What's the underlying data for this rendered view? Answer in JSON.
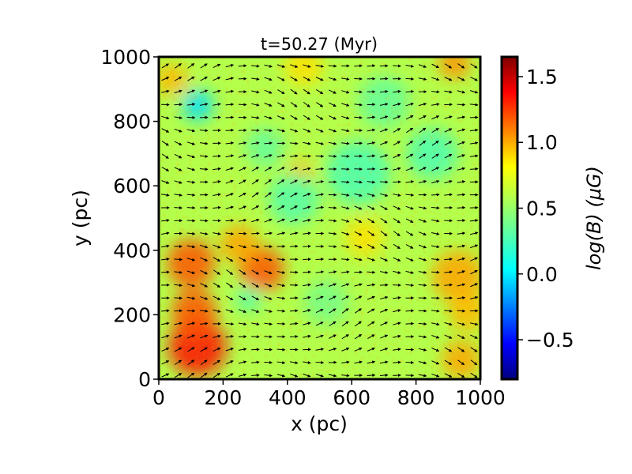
{
  "chart_data": {
    "type": "heatmap",
    "title": "t=50.27 (Myr)",
    "xlabel": "x (pc)",
    "ylabel": "y (pc)",
    "xlim": [
      0,
      1000
    ],
    "ylim": [
      0,
      1000
    ],
    "xticks": [
      0,
      200,
      400,
      600,
      800,
      1000
    ],
    "yticks": [
      0,
      200,
      400,
      600,
      800,
      1000
    ],
    "colorbar": {
      "label": "log(B) (μG)",
      "range": [
        -0.8,
        1.65
      ],
      "ticks": [
        -0.5,
        0.0,
        0.5,
        1.0,
        1.5
      ],
      "tick_labels": [
        "−0.5",
        "0.0",
        "0.5",
        "1.0",
        "1.5"
      ],
      "colormap": "jet"
    },
    "background_level": 0.55,
    "field_features": [
      {
        "x": 120,
        "y": 100,
        "radius": 90,
        "value": 1.3
      },
      {
        "x": 110,
        "y": 210,
        "radius": 70,
        "value": 1.15
      },
      {
        "x": 100,
        "y": 360,
        "radius": 75,
        "value": 1.15
      },
      {
        "x": 320,
        "y": 340,
        "radius": 70,
        "value": 1.15
      },
      {
        "x": 250,
        "y": 420,
        "radius": 60,
        "value": 0.95
      },
      {
        "x": 930,
        "y": 320,
        "radius": 80,
        "value": 0.95
      },
      {
        "x": 940,
        "y": 60,
        "radius": 60,
        "value": 0.95
      },
      {
        "x": 960,
        "y": 210,
        "radius": 60,
        "value": 0.9
      },
      {
        "x": 920,
        "y": 980,
        "radius": 50,
        "value": 1.0
      },
      {
        "x": 40,
        "y": 930,
        "radius": 50,
        "value": 0.9
      },
      {
        "x": 450,
        "y": 970,
        "radius": 60,
        "value": 0.8
      },
      {
        "x": 440,
        "y": 640,
        "radius": 40,
        "value": 0.9
      },
      {
        "x": 640,
        "y": 440,
        "radius": 60,
        "value": 0.8
      },
      {
        "x": 120,
        "y": 850,
        "radius": 50,
        "value": 0.05
      },
      {
        "x": 850,
        "y": 700,
        "radius": 80,
        "value": 0.3
      },
      {
        "x": 620,
        "y": 640,
        "radius": 100,
        "value": 0.3
      },
      {
        "x": 420,
        "y": 560,
        "radius": 80,
        "value": 0.32
      },
      {
        "x": 330,
        "y": 720,
        "radius": 60,
        "value": 0.35
      },
      {
        "x": 700,
        "y": 860,
        "radius": 80,
        "value": 0.35
      },
      {
        "x": 520,
        "y": 240,
        "radius": 70,
        "value": 0.4
      },
      {
        "x": 280,
        "y": 250,
        "radius": 40,
        "value": 0.3
      }
    ],
    "vector_field": {
      "x_start": 20,
      "x_step": 40,
      "y_start": 12,
      "y_step": 40,
      "direction": "predominantly +x, locally distorted"
    },
    "grid": false
  }
}
